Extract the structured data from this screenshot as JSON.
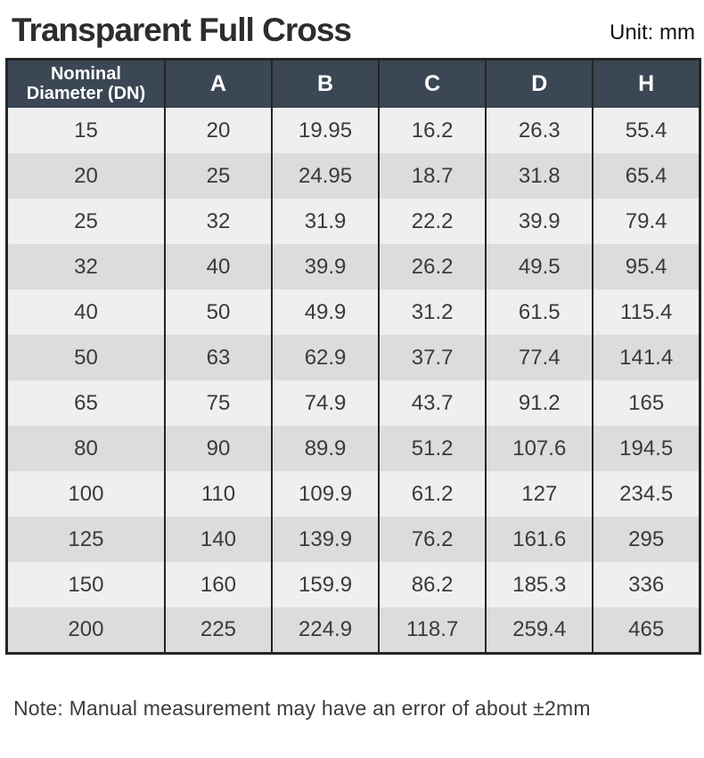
{
  "header": {
    "title": "Transparent Full Cross",
    "unit_label": "Unit: mm"
  },
  "table": {
    "columns": [
      "Nominal Diameter (DN)",
      "A",
      "B",
      "C",
      "D",
      "H"
    ],
    "rows": [
      [
        "15",
        "20",
        "19.95",
        "16.2",
        "26.3",
        "55.4"
      ],
      [
        "20",
        "25",
        "24.95",
        "18.7",
        "31.8",
        "65.4"
      ],
      [
        "25",
        "32",
        "31.9",
        "22.2",
        "39.9",
        "79.4"
      ],
      [
        "32",
        "40",
        "39.9",
        "26.2",
        "49.5",
        "95.4"
      ],
      [
        "40",
        "50",
        "49.9",
        "31.2",
        "61.5",
        "115.4"
      ],
      [
        "50",
        "63",
        "62.9",
        "37.7",
        "77.4",
        "141.4"
      ],
      [
        "65",
        "75",
        "74.9",
        "43.7",
        "91.2",
        "165"
      ],
      [
        "80",
        "90",
        "89.9",
        "51.2",
        "107.6",
        "194.5"
      ],
      [
        "100",
        "110",
        "109.9",
        "61.2",
        "127",
        "234.5"
      ],
      [
        "125",
        "140",
        "139.9",
        "76.2",
        "161.6",
        "295"
      ],
      [
        "150",
        "160",
        "159.9",
        "86.2",
        "185.3",
        "336"
      ],
      [
        "200",
        "225",
        "224.9",
        "118.7",
        "259.4",
        "465"
      ]
    ]
  },
  "footer": {
    "note": "Note: Manual measurement may have an error of about ±2mm"
  },
  "colors": {
    "header_bg": "#3b4754",
    "header_text": "#ffffff",
    "row_light": "#efefef",
    "row_dark": "#dcdcdc",
    "border": "#252525",
    "cell_text": "#3a3a3a"
  }
}
